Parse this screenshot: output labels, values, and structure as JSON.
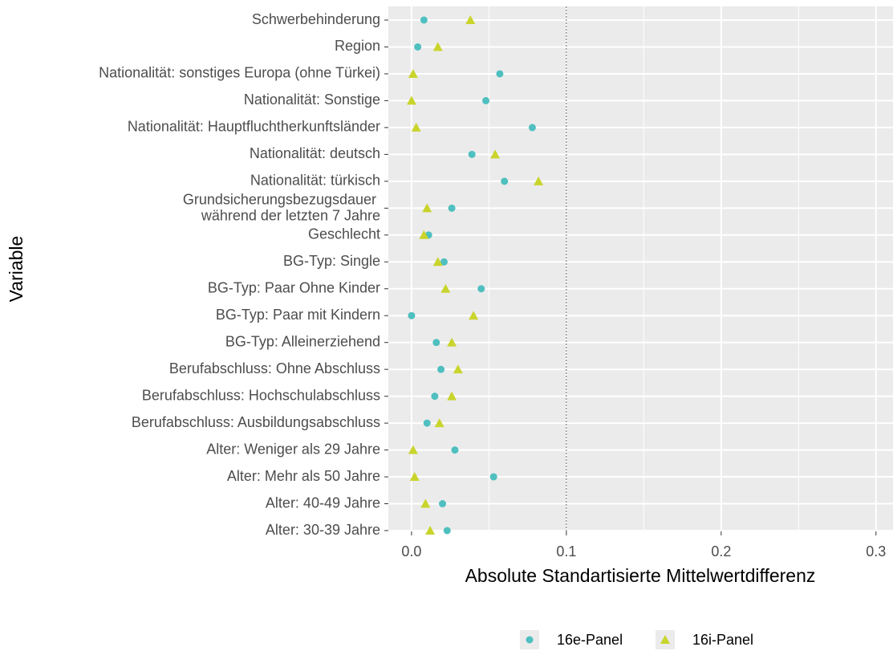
{
  "chart_data": {
    "type": "scatter",
    "x_label": "Absolute Standartisierte Mittelwertdifferenz",
    "y_label": "Variable",
    "categories": [
      "Schwerbehinderung",
      "Region",
      "Nationalität: sonstiges Europa (ohne Türkei)",
      "Nationalität: Sonstige",
      "Nationalität: Hauptfluchtherkunftsländer",
      "Nationalität: deutsch",
      "Nationalität:  türkisch",
      "Grundsicherungsbezugsdauer \nwährend der letzten 7 Jahre",
      "Geschlecht",
      "BG-Typ: Single",
      "BG-Typ: Paar Ohne Kinder",
      "BG-Typ: Paar mit Kindern",
      "BG-Typ: Alleinerziehend",
      "Berufabschluss: Ohne Abschluss",
      "Berufabschluss: Hochschulabschluss",
      "Berufabschluss: Ausbildungsabschluss",
      "Alter: Weniger als 29 Jahre",
      "Alter: Mehr als 50 Jahre",
      "Alter:  40-49 Jahre",
      "Alter:  30-39 Jahre"
    ],
    "series": [
      {
        "name": "16e-Panel",
        "color": "#4fbfbf",
        "marker": "circle",
        "values": [
          0.008,
          0.004,
          0.057,
          0.048,
          0.078,
          0.039,
          0.06,
          0.026,
          0.011,
          0.021,
          0.045,
          0.0,
          0.016,
          0.019,
          0.015,
          0.01,
          0.028,
          0.053,
          0.02,
          0.023
        ]
      },
      {
        "name": "16i-Panel",
        "color": "#c9d42c",
        "marker": "triangle",
        "values": [
          0.038,
          0.017,
          0.001,
          0.0,
          0.003,
          0.054,
          0.082,
          0.01,
          0.008,
          0.017,
          0.022,
          0.04,
          0.026,
          0.03,
          0.026,
          0.018,
          0.001,
          0.002,
          0.009,
          0.012
        ]
      }
    ],
    "xlim": [
      -0.015,
      0.311
    ],
    "xticks": [
      {
        "value": 0,
        "label": "0.0"
      },
      0.1,
      0.2,
      0.3
    ],
    "vline": 0.1,
    "grid": true,
    "legend": "bottom"
  }
}
